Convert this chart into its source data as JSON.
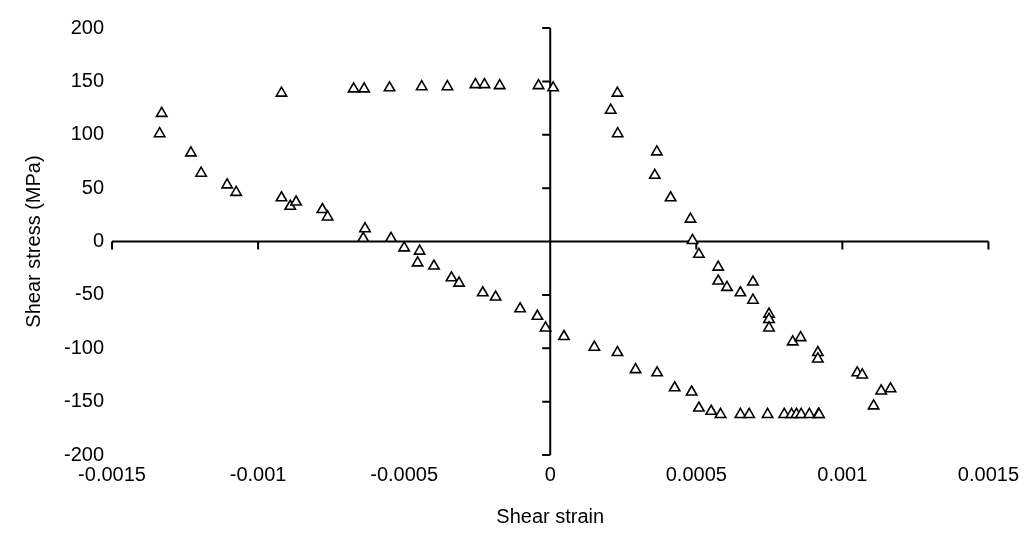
{
  "chart_data": {
    "type": "scatter",
    "xlabel": "Shear strain",
    "ylabel": "Shear stress (MPa)",
    "xlim": [
      -0.0015,
      0.0015
    ],
    "ylim": [
      -200,
      200
    ],
    "xticks": [
      -0.0015,
      -0.001,
      -0.0005,
      0,
      0.0005,
      0.001,
      0.0015
    ],
    "yticks": [
      -200,
      -150,
      -100,
      -50,
      0,
      50,
      100,
      150,
      200
    ],
    "legend": false,
    "marker": "triangle",
    "series": [
      {
        "color": "#000000",
        "x": [
          -0.00133,
          -0.001337,
          -0.00123,
          -0.001195,
          -0.001106,
          -0.001075,
          -0.00092,
          -0.00089,
          -0.00087,
          -0.00078,
          -0.000762,
          -0.000634,
          -0.00064,
          -0.000545,
          -0.0005,
          -0.000447,
          -0.000454,
          -0.000398,
          -0.000338,
          -0.000312,
          -0.000231,
          -0.000187,
          -0.000103,
          -4.4e-05,
          -1.6e-05,
          4.7e-05,
          0.000151,
          0.00023,
          0.000292,
          0.000366,
          0.000426,
          0.000484,
          0.000509,
          0.000551,
          0.000583,
          0.000651,
          0.000681,
          0.000744,
          0.000801,
          0.000826,
          0.000843,
          0.000859,
          0.000887,
          0.000918,
          0.00092,
          -0.00092,
          -0.000673,
          -0.000637,
          -0.00055,
          -0.00044,
          -0.000352,
          -0.000256,
          -0.000225,
          -0.000173,
          -4e-05,
          1e-05,
          0.00023,
          0.000207,
          0.000231,
          0.000365,
          0.000358,
          0.000412,
          0.00048,
          0.000487,
          0.000509,
          0.000575,
          0.000575,
          0.000605,
          0.000651,
          0.000694,
          0.000694,
          0.000749,
          0.000749,
          0.000749,
          0.00083,
          0.000857,
          0.000916,
          0.000916,
          0.001051,
          0.001068,
          0.001107,
          0.001133,
          0.001165
        ],
        "values": [
          120,
          101,
          83,
          64,
          53,
          46,
          41,
          33,
          37,
          30,
          23,
          12,
          3,
          3,
          -6,
          -9,
          -20,
          -23,
          -34,
          -39,
          -48,
          -52,
          -63,
          -70,
          -81,
          -89,
          -99,
          -104,
          -120,
          -123,
          -137,
          -141,
          -156,
          -159,
          -162,
          -162,
          -162,
          -162,
          -162,
          -162,
          -162,
          -162,
          -162,
          -162,
          -162,
          139,
          143,
          143,
          144,
          145,
          145,
          147,
          147,
          146,
          146,
          144,
          139,
          123,
          101,
          84,
          62,
          41,
          21,
          1,
          -12,
          -24,
          -37,
          -43,
          -48,
          -38,
          -55,
          -68,
          -73,
          -81,
          -94,
          -90,
          -104,
          -110,
          -123,
          -125,
          -154,
          -140,
          -138
        ]
      }
    ]
  }
}
